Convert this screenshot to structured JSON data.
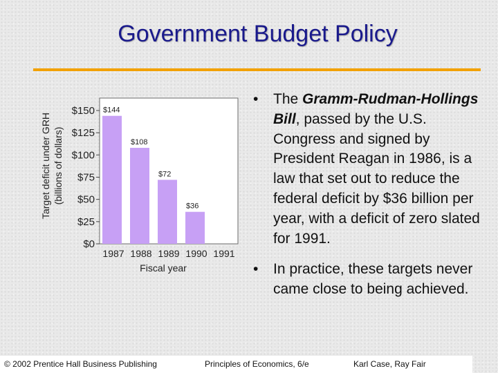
{
  "slide": {
    "title": "Government Budget Policy",
    "accent_color": "#f2a100",
    "title_color": "#1a1a8c"
  },
  "bullets": [
    {
      "pre": "The ",
      "emph": "Gramm-Rudman-Hollings Bill",
      "post": ", passed by the U.S. Congress and signed by President Reagan in 1986, is a law that set out to reduce the federal deficit by $36 billion per year, with a deficit of zero slated for 1991."
    },
    {
      "pre": "In practice, these targets never came close to being achieved.",
      "emph": "",
      "post": ""
    }
  ],
  "footer": {
    "copyright": "© 2002 Prentice Hall Business Publishing",
    "book": "Principles of Economics, 6/e",
    "authors": "Karl Case, Ray Fair"
  },
  "chart_data": {
    "type": "bar",
    "categories": [
      "1987",
      "1988",
      "1989",
      "1990",
      "1991"
    ],
    "values": [
      144,
      108,
      72,
      36,
      0
    ],
    "data_labels": [
      "$144",
      "$108",
      "$72",
      "$36",
      ""
    ],
    "yticks": [
      0,
      25,
      50,
      75,
      100,
      125,
      150
    ],
    "ytick_labels": [
      "$0",
      "$25",
      "$50",
      "$75",
      "$100",
      "$125",
      "$150"
    ],
    "ylim": [
      0,
      165
    ],
    "xlabel": "Fiscal year",
    "ylabel": "Target deficit under GRH",
    "ylabel2": "(billions of dollars)",
    "bar_color": "#c7a0f5",
    "grid": false
  }
}
